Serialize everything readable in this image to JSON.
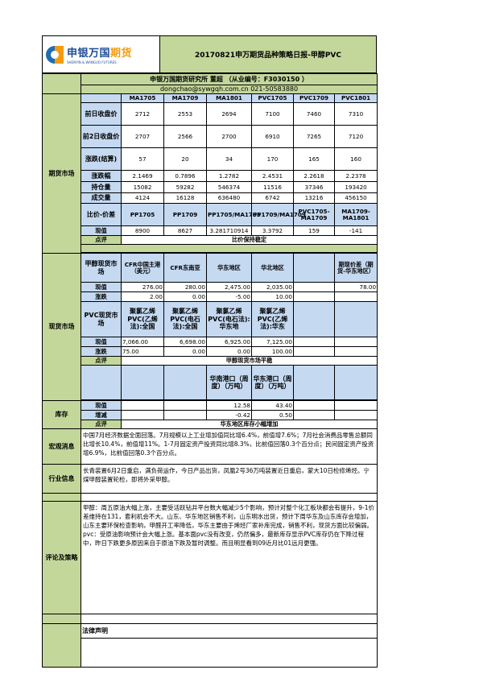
{
  "header": {
    "logo_cn_a": "申银万国",
    "logo_cn_b": "期货",
    "logo_en": "SHENYIN & WANGUO FUTURES",
    "title": "20170821申万期货品种策略日报-甲醇PVC"
  },
  "info": {
    "line1": "申银万国期货研究所 董超 （从业编号：F3030150 ）",
    "line2": "dongchao@sywgqh.com.cn 021-50583880"
  },
  "futures": {
    "section": "期货市场",
    "columns": [
      "MA1705",
      "MA1709",
      "MA1801",
      "PVC1705",
      "PVC1709",
      "PVC1801"
    ],
    "rows": [
      {
        "label": "前日收盘价",
        "values": [
          "2712",
          "2553",
          "2694",
          "7100",
          "7460",
          "7310"
        ]
      },
      {
        "label": "前2日收盘价",
        "values": [
          "2707",
          "2566",
          "2700",
          "6910",
          "7265",
          "7120"
        ]
      },
      {
        "label": "涨跌(结算)",
        "values": [
          "57",
          "20",
          "34",
          "170",
          "165",
          "160"
        ]
      },
      {
        "label": "涨跌幅",
        "values": [
          "2.1469",
          "0.7896",
          "1.2782",
          "2.4531",
          "2.2618",
          "2.2378"
        ]
      },
      {
        "label": "持仓量",
        "values": [
          "15082",
          "59282",
          "546374",
          "11516",
          "37346",
          "193420"
        ]
      },
      {
        "label": "成交量",
        "values": [
          "4124",
          "16128",
          "636480",
          "6742",
          "13216",
          "456150"
        ]
      }
    ],
    "spread_label": "比价-价差",
    "spread_cols": [
      "PP1705",
      "PP1709",
      "PP1705/MA1705",
      "PP1709/MA1709",
      "PVC1705-MA1709",
      "MA1709-MA1801"
    ],
    "current_label": "现值",
    "current_values": [
      "8900",
      "8627",
      "3.281710914",
      "3.3792",
      "159",
      "-141"
    ],
    "comment_label": "点评",
    "comment": "比价保持稳定"
  },
  "spot": {
    "section": "现货市场",
    "ma_header": "甲醇现货市场",
    "ma_cols": [
      "CFR中国主港（美元）",
      "CFR东南亚",
      "华东地区",
      "华北地区",
      "",
      "期现价差（期货-华东地区）"
    ],
    "ma_current": [
      "276.00",
      "280.00",
      "2,475.00",
      "2,035.00",
      "",
      "78.00"
    ],
    "ma_change": [
      "2.00",
      "0.00",
      "-5.00",
      "10.00",
      "",
      ""
    ],
    "pvc_header": "PVC现货市场",
    "pvc_cols": [
      "聚氯乙烯PVC(乙烯法):全国",
      "聚氯乙烯PVC(电石法):全国",
      "聚氯乙烯PVC(电石法):华东地",
      "聚氯乙烯PVC(乙烯法):华东",
      "",
      ""
    ],
    "pvc_current": [
      "7,066.00",
      "6,698.00",
      "6,925.00",
      "7,125.00",
      "",
      ""
    ],
    "pvc_change": [
      "75.00",
      "0.00",
      "0.00",
      "100.00",
      "",
      ""
    ],
    "current_label": "现值",
    "change_label": "涨跌",
    "comment_label": "点评",
    "comment": "甲醇现货市场平稳"
  },
  "inventory": {
    "section": "库存",
    "cols": [
      "",
      "",
      "华南港口（周度）（万吨）",
      "华东港口（周度）（万吨）",
      "",
      ""
    ],
    "current_label": "现值",
    "current": [
      "",
      "",
      "12.58",
      "43.40",
      "",
      ""
    ],
    "change_label": "增减",
    "change": [
      "",
      "",
      "-0.42",
      "0.50",
      "",
      ""
    ],
    "comment_label": "点评",
    "comment": "华东地区库存小幅增加"
  },
  "macro": {
    "label": "宏观消息",
    "text": "中国7月经济数据全面回落。7月规模以上工业增加值同比增6.4%，前值增7.6%；7月社会消费品零售总额同比增长10.4%，前值增11%。1-7月固定资产投资同比增8.3%，比前值回落0.3个百分点；民间固定资产投资增6.9%，比前值回落0.3个百分点。"
  },
  "industry": {
    "label": "行业信息",
    "text": "长青装置6月2日重启，满负荷运作，今日产品出货，凤凰2号36万吨装置近日重启，蒙大10日检修烯烃。宁煤甲醇装置轮检，即将外采甲醇。"
  },
  "strategy": {
    "label": "评论及策略",
    "text1": "甲醇：周五原油大幅上涨，主要受活跃钻井平台数大幅减少5个影响，预计对整个化工板块都会有提升，9-1价差维持在131，套利机会不大。山东、华东地区销售不利，山东明水出货，预计下周华东及山东库存会增加，山东主要环保检查影响，甲醛开工率降低，华东主要由于烯烃厂家补库完成，销售不利，现货方面比较偏弱。",
    "text2": "pvc：受原油影响预计会大幅上涨。基本面pvc没有改变，仍然偏多，最新库存显示PVC库存仍在下降过程中，昨日下跌更多原因来自于原油下跌及暂时调整。而且明显看到09近月比01远月更强。"
  },
  "legal": {
    "label": "法律声明"
  }
}
